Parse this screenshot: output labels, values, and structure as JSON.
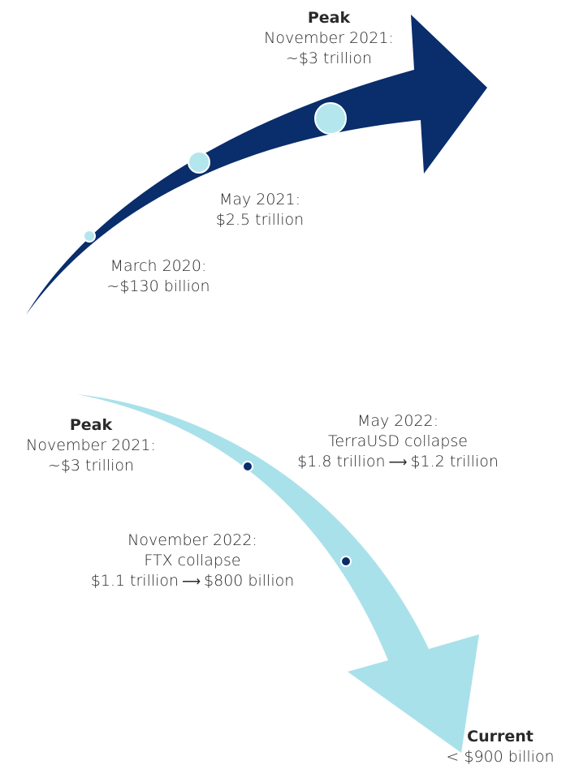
{
  "colors": {
    "rise_arrow": "#0a2d6b",
    "fall_arrow": "#a9e1ea",
    "rise_marker": "#b4e6ee",
    "fall_marker": "#0a2d6b",
    "text": "#2a2a2a"
  },
  "rise": {
    "peak": {
      "heading": "Peak",
      "date": "November 2021:",
      "value": "~$3 trillion"
    },
    "points": [
      {
        "date": "March 2020:",
        "value": "~$130 billion"
      },
      {
        "date": "May 2021:",
        "value": "$2.5 trillion"
      }
    ]
  },
  "fall": {
    "peak": {
      "heading": "Peak",
      "date": "November 2021:",
      "value": "~$3 trillion"
    },
    "events": [
      {
        "date": "May 2022:",
        "event": "TerraUSD collapse",
        "from": "$1.8 trillion",
        "to": "$1.2 trillion"
      },
      {
        "date": "November 2022:",
        "event": "FTX collapse",
        "from": "$1.1 trillion",
        "to": "$800 billion"
      }
    ],
    "current": {
      "heading": "Current",
      "value": "< $900 billion"
    }
  }
}
